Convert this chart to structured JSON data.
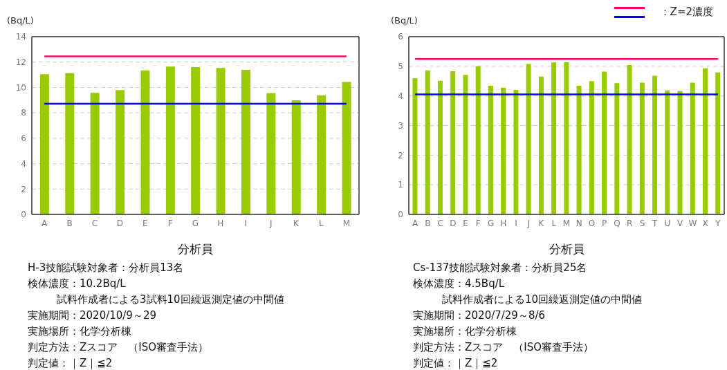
{
  "chart_data": [
    {
      "type": "bar",
      "xlabel": "分析員",
      "ylabel": "(Bq/L)",
      "categories": [
        "A",
        "B",
        "C",
        "D",
        "E",
        "F",
        "G",
        "H",
        "I",
        "J",
        "K",
        "L",
        "M"
      ],
      "values": [
        11.05,
        11.13,
        9.57,
        9.79,
        11.33,
        11.64,
        11.6,
        11.53,
        11.38,
        9.54,
        8.99,
        9.39,
        10.43
      ],
      "color": "#99cc00",
      "ylim": [
        0,
        14
      ],
      "yticks": [
        0,
        2,
        4,
        6,
        8,
        10,
        12,
        14
      ],
      "grid": "y",
      "ref_lines": [
        {
          "axis": "y",
          "value": 12.45,
          "color": "#ff0066"
        },
        {
          "axis": "y",
          "value": 8.71,
          "color": "#0000ff"
        }
      ],
      "annotations": [
        "H-3技能試験対象者：分析員13名",
        "検体濃度：10.2Bq/L",
        "試料作成者による3試料10回繰返測定値の中間値",
        "実施期間：2020/10/9～29",
        "実施場所：化学分析棟",
        "判定方法：Zスコア　（ISO審査手法）",
        "判定値：｜Z｜≦2"
      ]
    },
    {
      "type": "bar",
      "xlabel": "分析員",
      "ylabel": "(Bq/L)",
      "legend_title": "：Z=2濃度",
      "categories": [
        "A",
        "B",
        "C",
        "D",
        "E",
        "F",
        "G",
        "H",
        "I",
        "J",
        "K",
        "L",
        "M",
        "N",
        "O",
        "P",
        "Q",
        "R",
        "S",
        "T",
        "U",
        "V",
        "W",
        "X",
        "Y"
      ],
      "values": [
        4.6,
        4.86,
        4.51,
        4.83,
        4.71,
        5.0,
        4.34,
        4.28,
        4.2,
        5.08,
        4.65,
        5.13,
        5.14,
        4.34,
        4.5,
        4.82,
        4.43,
        5.04,
        4.45,
        4.68,
        4.19,
        4.17,
        4.45,
        4.93,
        4.79
      ],
      "color": "#99cc00",
      "ylim": [
        0,
        6
      ],
      "yticks": [
        0,
        1,
        2,
        3,
        4,
        5,
        6
      ],
      "grid": "y",
      "ref_lines": [
        {
          "axis": "y",
          "value": 5.25,
          "color": "#ff0066"
        },
        {
          "axis": "y",
          "value": 4.05,
          "color": "#0000ff"
        }
      ],
      "annotations": [
        "Cs-137技能試験対象者：分析員25名",
        "検体濃度：4.5Bq/L",
        "試料作成者による10回繰返測定値の中間値",
        "実施期間：2020/7/29～8/6",
        "実施場所：化学分析棟",
        "判定方法：Zスコア　（ISO審査手法）",
        "判定値：｜Z｜≦2"
      ]
    }
  ]
}
